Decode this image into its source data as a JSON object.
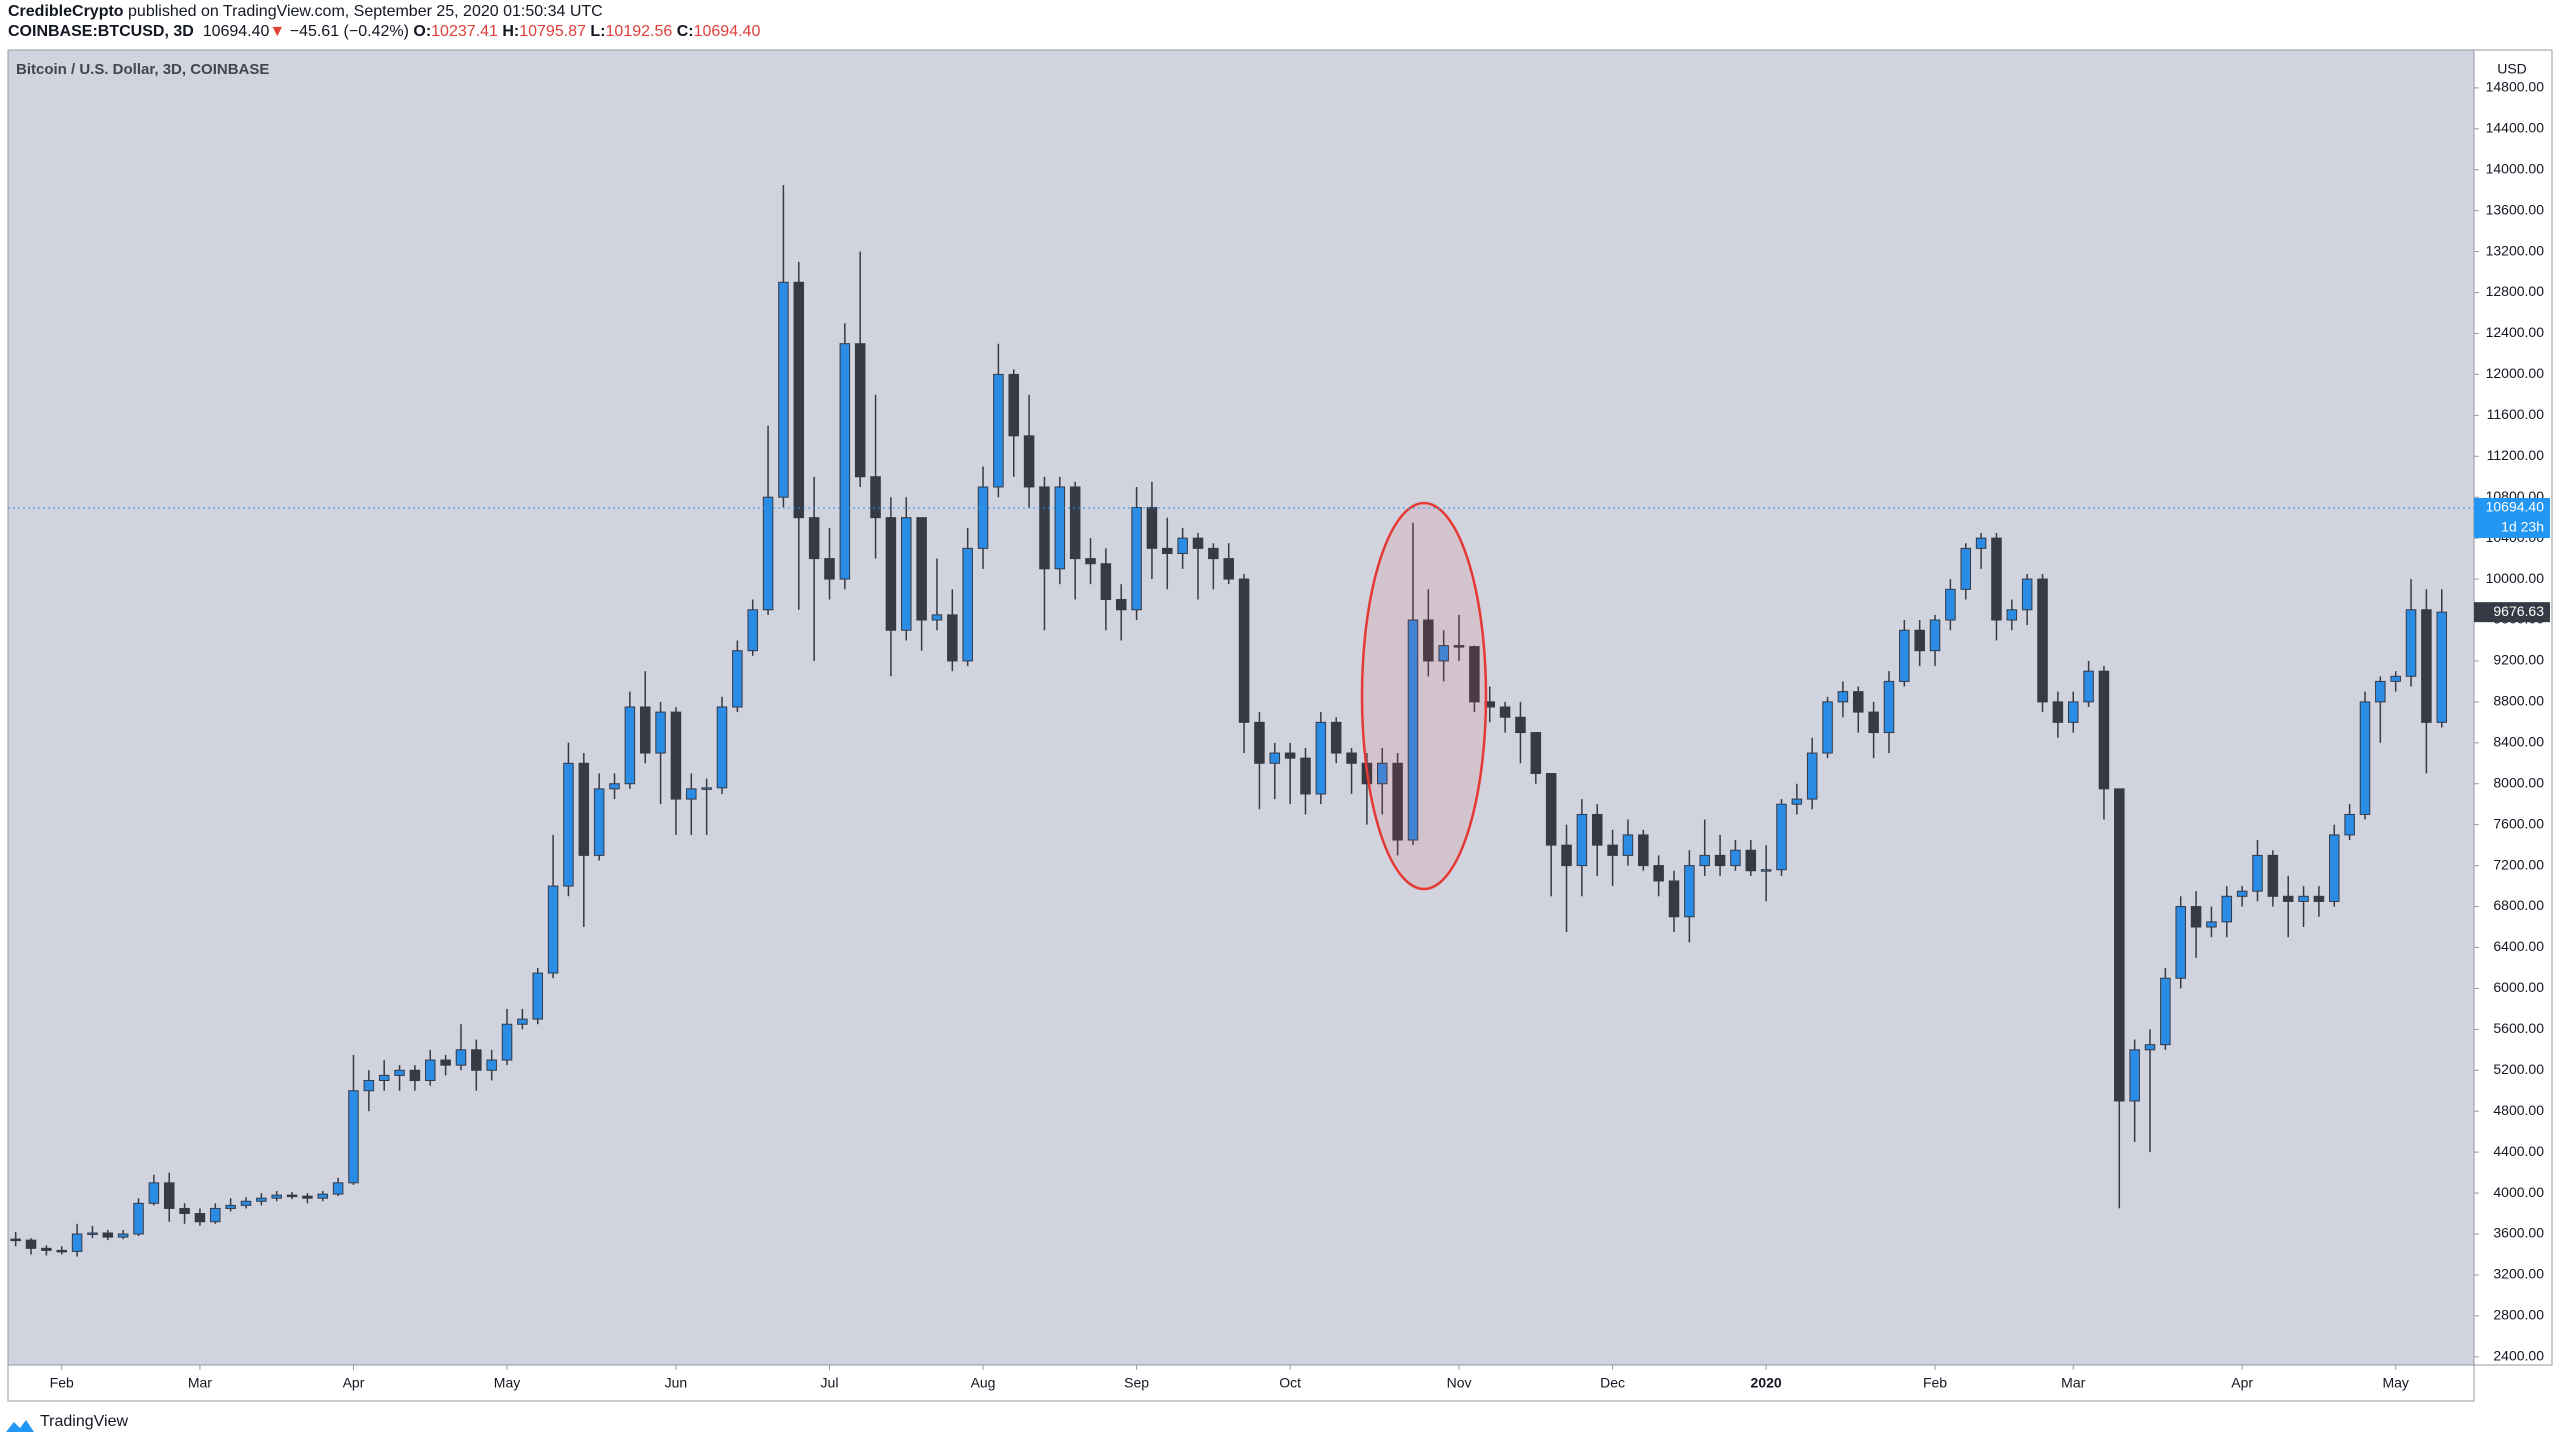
{
  "header": {
    "author": "CredibleCrypto",
    "published": "published on TradingView.com, September 25, 2020 01:50:34 UTC",
    "symbol": "COINBASE:BTCUSD, 3D",
    "last": "10694.40",
    "arrow": "▼",
    "change": "−45.61 (−0.42%)",
    "o_label": "O:",
    "o": "10237.41",
    "h_label": "H:",
    "h": "10795.87",
    "l_label": "L:",
    "l": "10192.56",
    "c_label": "C:",
    "c": "10694.40"
  },
  "footer": {
    "brand": "TradingView"
  },
  "chart_data": {
    "type": "candlestick",
    "title": "Bitcoin / U.S. Dollar, 3D, COINBASE",
    "y_axis_label": "USD",
    "up_color": "#2b8ce6",
    "down_color": "#363a45",
    "background": "#d1d4de",
    "ylim": [
      2320,
      15170
    ],
    "xlim": [
      -0.5,
      160.1
    ],
    "yticks": [
      {
        "value": 2400,
        "label": "2400.00"
      },
      {
        "value": 2800,
        "label": "2800.00"
      },
      {
        "value": 3200,
        "label": "3200.00"
      },
      {
        "value": 3600,
        "label": "3600.00"
      },
      {
        "value": 4000,
        "label": "4000.00"
      },
      {
        "value": 4400,
        "label": "4400.00"
      },
      {
        "value": 4800,
        "label": "4800.00"
      },
      {
        "value": 5200,
        "label": "5200.00"
      },
      {
        "value": 5600,
        "label": "5600.00"
      },
      {
        "value": 6000,
        "label": "6000.00"
      },
      {
        "value": 6400,
        "label": "6400.00"
      },
      {
        "value": 6800,
        "label": "6800.00"
      },
      {
        "value": 7200,
        "label": "7200.00"
      },
      {
        "value": 7600,
        "label": "7600.00"
      },
      {
        "value": 8000,
        "label": "8000.00"
      },
      {
        "value": 8400,
        "label": "8400.00"
      },
      {
        "value": 8800,
        "label": "8800.00"
      },
      {
        "value": 9200,
        "label": "9200.00"
      },
      {
        "value": 9600,
        "label": "9600.00"
      },
      {
        "value": 10000,
        "label": "10000.00"
      },
      {
        "value": 10400,
        "label": "10400.00"
      },
      {
        "value": 10800,
        "label": "10800.00"
      },
      {
        "value": 11200,
        "label": "11200.00"
      },
      {
        "value": 11600,
        "label": "11600.00"
      },
      {
        "value": 12000,
        "label": "12000.00"
      },
      {
        "value": 12400,
        "label": "12400.00"
      },
      {
        "value": 12800,
        "label": "12800.00"
      },
      {
        "value": 13200,
        "label": "13200.00"
      },
      {
        "value": 13600,
        "label": "13600.00"
      },
      {
        "value": 14000,
        "label": "14000.00"
      },
      {
        "value": 14400,
        "label": "14400.00"
      },
      {
        "value": 14800,
        "label": "14800.00"
      }
    ],
    "xticks": [
      {
        "value": 3,
        "label": "Feb"
      },
      {
        "value": 12,
        "label": "Mar"
      },
      {
        "value": 22,
        "label": "Apr"
      },
      {
        "value": 32,
        "label": "May"
      },
      {
        "value": 43,
        "label": "Jun"
      },
      {
        "value": 53,
        "label": "Jul"
      },
      {
        "value": 63,
        "label": "Aug"
      },
      {
        "value": 73,
        "label": "Sep"
      },
      {
        "value": 83,
        "label": "Oct"
      },
      {
        "value": 94,
        "label": "Nov"
      },
      {
        "value": 104,
        "label": "Dec"
      },
      {
        "value": 114,
        "label": "2020"
      },
      {
        "value": 125,
        "label": "Feb"
      },
      {
        "value": 134,
        "label": "Mar"
      },
      {
        "value": 145,
        "label": "Apr"
      },
      {
        "value": 155,
        "label": "May"
      }
    ],
    "price_line": {
      "value": 10694.4,
      "label": "10694.40",
      "countdown": "1d 23h"
    },
    "close_marker": {
      "value": 9676.63,
      "label": "9676.63"
    },
    "ohlc": [
      [
        3550,
        3620,
        3480,
        3540
      ],
      [
        3540,
        3560,
        3400,
        3460
      ],
      [
        3460,
        3490,
        3390,
        3440
      ],
      [
        3440,
        3480,
        3400,
        3430
      ],
      [
        3430,
        3700,
        3380,
        3600
      ],
      [
        3600,
        3680,
        3560,
        3610
      ],
      [
        3610,
        3640,
        3540,
        3570
      ],
      [
        3570,
        3640,
        3550,
        3600
      ],
      [
        3600,
        3950,
        3580,
        3900
      ],
      [
        3900,
        4180,
        3880,
        4100
      ],
      [
        4100,
        4200,
        3720,
        3850
      ],
      [
        3850,
        3900,
        3700,
        3800
      ],
      [
        3800,
        3850,
        3680,
        3720
      ],
      [
        3720,
        3900,
        3700,
        3850
      ],
      [
        3850,
        3950,
        3820,
        3880
      ],
      [
        3880,
        3960,
        3850,
        3920
      ],
      [
        3920,
        4000,
        3880,
        3950
      ],
      [
        3950,
        4020,
        3920,
        3980
      ],
      [
        3980,
        4010,
        3940,
        3970
      ],
      [
        3970,
        4000,
        3900,
        3950
      ],
      [
        3950,
        4020,
        3920,
        3990
      ],
      [
        3990,
        4150,
        3970,
        4100
      ],
      [
        4100,
        5350,
        4080,
        5000
      ],
      [
        5000,
        5200,
        4800,
        5100
      ],
      [
        5100,
        5300,
        5000,
        5150
      ],
      [
        5150,
        5250,
        5000,
        5200
      ],
      [
        5200,
        5250,
        5000,
        5100
      ],
      [
        5100,
        5400,
        5050,
        5300
      ],
      [
        5300,
        5350,
        5150,
        5250
      ],
      [
        5250,
        5650,
        5200,
        5400
      ],
      [
        5400,
        5500,
        5000,
        5200
      ],
      [
        5200,
        5400,
        5100,
        5300
      ],
      [
        5300,
        5800,
        5250,
        5650
      ],
      [
        5650,
        5800,
        5600,
        5700
      ],
      [
        5700,
        6200,
        5650,
        6150
      ],
      [
        6150,
        7500,
        6100,
        7000
      ],
      [
        7000,
        8400,
        6900,
        8200
      ],
      [
        8200,
        8300,
        6600,
        7300
      ],
      [
        7300,
        8100,
        7250,
        7950
      ],
      [
        7950,
        8100,
        7850,
        8000
      ],
      [
        8000,
        8900,
        7950,
        8750
      ],
      [
        8750,
        9100,
        8200,
        8300
      ],
      [
        8300,
        8800,
        7800,
        8700
      ],
      [
        8700,
        8750,
        7500,
        7850
      ],
      [
        7850,
        8100,
        7500,
        7950
      ],
      [
        7950,
        8050,
        7500,
        7960
      ],
      [
        7960,
        8850,
        7900,
        8750
      ],
      [
        8750,
        9400,
        8700,
        9300
      ],
      [
        9300,
        9800,
        9250,
        9700
      ],
      [
        9700,
        11500,
        9650,
        10800
      ],
      [
        10800,
        13850,
        10700,
        12900
      ],
      [
        12900,
        13100,
        9700,
        10600
      ],
      [
        10600,
        11000,
        9200,
        10200
      ],
      [
        10200,
        10500,
        9800,
        10000
      ],
      [
        10000,
        12500,
        9900,
        12300
      ],
      [
        12300,
        13200,
        10900,
        11000
      ],
      [
        11000,
        11800,
        10200,
        10600
      ],
      [
        10600,
        10800,
        9050,
        9500
      ],
      [
        9500,
        10800,
        9400,
        10600
      ],
      [
        10600,
        10600,
        9300,
        9600
      ],
      [
        9600,
        10200,
        9500,
        9650
      ],
      [
        9650,
        9900,
        9100,
        9200
      ],
      [
        9200,
        10500,
        9150,
        10300
      ],
      [
        10300,
        11100,
        10100,
        10900
      ],
      [
        10900,
        12300,
        10800,
        12000
      ],
      [
        12000,
        12050,
        11000,
        11400
      ],
      [
        11400,
        11800,
        10700,
        10900
      ],
      [
        10900,
        11000,
        9500,
        10100
      ],
      [
        10100,
        11000,
        9950,
        10900
      ],
      [
        10900,
        10950,
        9800,
        10200
      ],
      [
        10200,
        10400,
        9950,
        10150
      ],
      [
        10150,
        10300,
        9500,
        9800
      ],
      [
        9800,
        9950,
        9400,
        9700
      ],
      [
        9700,
        10900,
        9600,
        10700
      ],
      [
        10700,
        10950,
        10000,
        10300
      ],
      [
        10300,
        10600,
        9900,
        10250
      ],
      [
        10250,
        10500,
        10100,
        10400
      ],
      [
        10400,
        10450,
        9800,
        10300
      ],
      [
        10300,
        10350,
        9900,
        10200
      ],
      [
        10200,
        10350,
        9950,
        10000
      ],
      [
        10000,
        10050,
        8300,
        8600
      ],
      [
        8600,
        8700,
        7750,
        8200
      ],
      [
        8200,
        8400,
        7850,
        8300
      ],
      [
        8300,
        8400,
        7800,
        8250
      ],
      [
        8250,
        8350,
        7700,
        7900
      ],
      [
        7900,
        8700,
        7800,
        8600
      ],
      [
        8600,
        8650,
        8200,
        8300
      ],
      [
        8300,
        8350,
        7900,
        8200
      ],
      [
        8200,
        8300,
        7600,
        8000
      ],
      [
        8000,
        8350,
        7700,
        8200
      ],
      [
        8200,
        8300,
        7300,
        7450
      ],
      [
        7450,
        10550,
        7400,
        9600
      ],
      [
        9600,
        9900,
        9050,
        9200
      ],
      [
        9200,
        9500,
        9000,
        9350
      ],
      [
        9350,
        9650,
        9200,
        9340
      ],
      [
        9340,
        9350,
        8700,
        8800
      ],
      [
        8800,
        8950,
        8600,
        8750
      ],
      [
        8750,
        8800,
        8500,
        8650
      ],
      [
        8650,
        8800,
        8200,
        8500
      ],
      [
        8500,
        8500,
        8000,
        8100
      ],
      [
        8100,
        8100,
        6900,
        7400
      ],
      [
        7400,
        7600,
        6550,
        7200
      ],
      [
        7200,
        7850,
        6900,
        7700
      ],
      [
        7700,
        7800,
        7100,
        7400
      ],
      [
        7400,
        7550,
        7000,
        7300
      ],
      [
        7300,
        7650,
        7200,
        7500
      ],
      [
        7500,
        7550,
        7150,
        7200
      ],
      [
        7200,
        7300,
        6900,
        7050
      ],
      [
        7050,
        7150,
        6550,
        6700
      ],
      [
        6700,
        7350,
        6450,
        7200
      ],
      [
        7200,
        7650,
        7100,
        7300
      ],
      [
        7300,
        7500,
        7100,
        7200
      ],
      [
        7200,
        7450,
        7150,
        7350
      ],
      [
        7350,
        7450,
        7100,
        7150
      ],
      [
        7150,
        7400,
        6850,
        7160
      ],
      [
        7160,
        7850,
        7100,
        7800
      ],
      [
        7800,
        8000,
        7700,
        7850
      ],
      [
        7850,
        8450,
        7750,
        8300
      ],
      [
        8300,
        8850,
        8250,
        8800
      ],
      [
        8800,
        9000,
        8650,
        8900
      ],
      [
        8900,
        8950,
        8500,
        8700
      ],
      [
        8700,
        8800,
        8250,
        8500
      ],
      [
        8500,
        9100,
        8300,
        9000
      ],
      [
        9000,
        9600,
        8950,
        9500
      ],
      [
        9500,
        9600,
        9150,
        9300
      ],
      [
        9300,
        9650,
        9150,
        9600
      ],
      [
        9600,
        10000,
        9500,
        9900
      ],
      [
        9900,
        10350,
        9800,
        10300
      ],
      [
        10300,
        10450,
        10100,
        10400
      ],
      [
        10400,
        10450,
        9400,
        9600
      ],
      [
        9600,
        9800,
        9500,
        9700
      ],
      [
        9700,
        10050,
        9550,
        10000
      ],
      [
        10000,
        10050,
        8700,
        8800
      ],
      [
        8800,
        8900,
        8450,
        8600
      ],
      [
        8600,
        8900,
        8500,
        8800
      ],
      [
        8800,
        9200,
        8750,
        9100
      ],
      [
        9100,
        9150,
        7650,
        7950
      ],
      [
        7950,
        7950,
        3850,
        4900
      ],
      [
        4900,
        5500,
        4500,
        5400
      ],
      [
        5400,
        5600,
        4400,
        5450
      ],
      [
        5450,
        6200,
        5400,
        6100
      ],
      [
        6100,
        6900,
        6000,
        6800
      ],
      [
        6800,
        6950,
        6300,
        6600
      ],
      [
        6600,
        6800,
        6500,
        6650
      ],
      [
        6650,
        7000,
        6500,
        6900
      ],
      [
        6900,
        7000,
        6800,
        6950
      ],
      [
        6950,
        7450,
        6850,
        7300
      ],
      [
        7300,
        7350,
        6800,
        6900
      ],
      [
        6900,
        7100,
        6500,
        6850
      ],
      [
        6850,
        7000,
        6600,
        6900
      ],
      [
        6900,
        7000,
        6700,
        6850
      ],
      [
        6850,
        7600,
        6800,
        7500
      ],
      [
        7500,
        7800,
        7450,
        7700
      ],
      [
        7700,
        8900,
        7650,
        8800
      ],
      [
        8800,
        9050,
        8400,
        9000
      ],
      [
        9000,
        9100,
        8900,
        9050
      ],
      [
        9050,
        10000,
        8950,
        9700
      ],
      [
        9700,
        9900,
        8100,
        8600
      ],
      [
        8600,
        9900,
        8550,
        9676.63
      ]
    ]
  }
}
